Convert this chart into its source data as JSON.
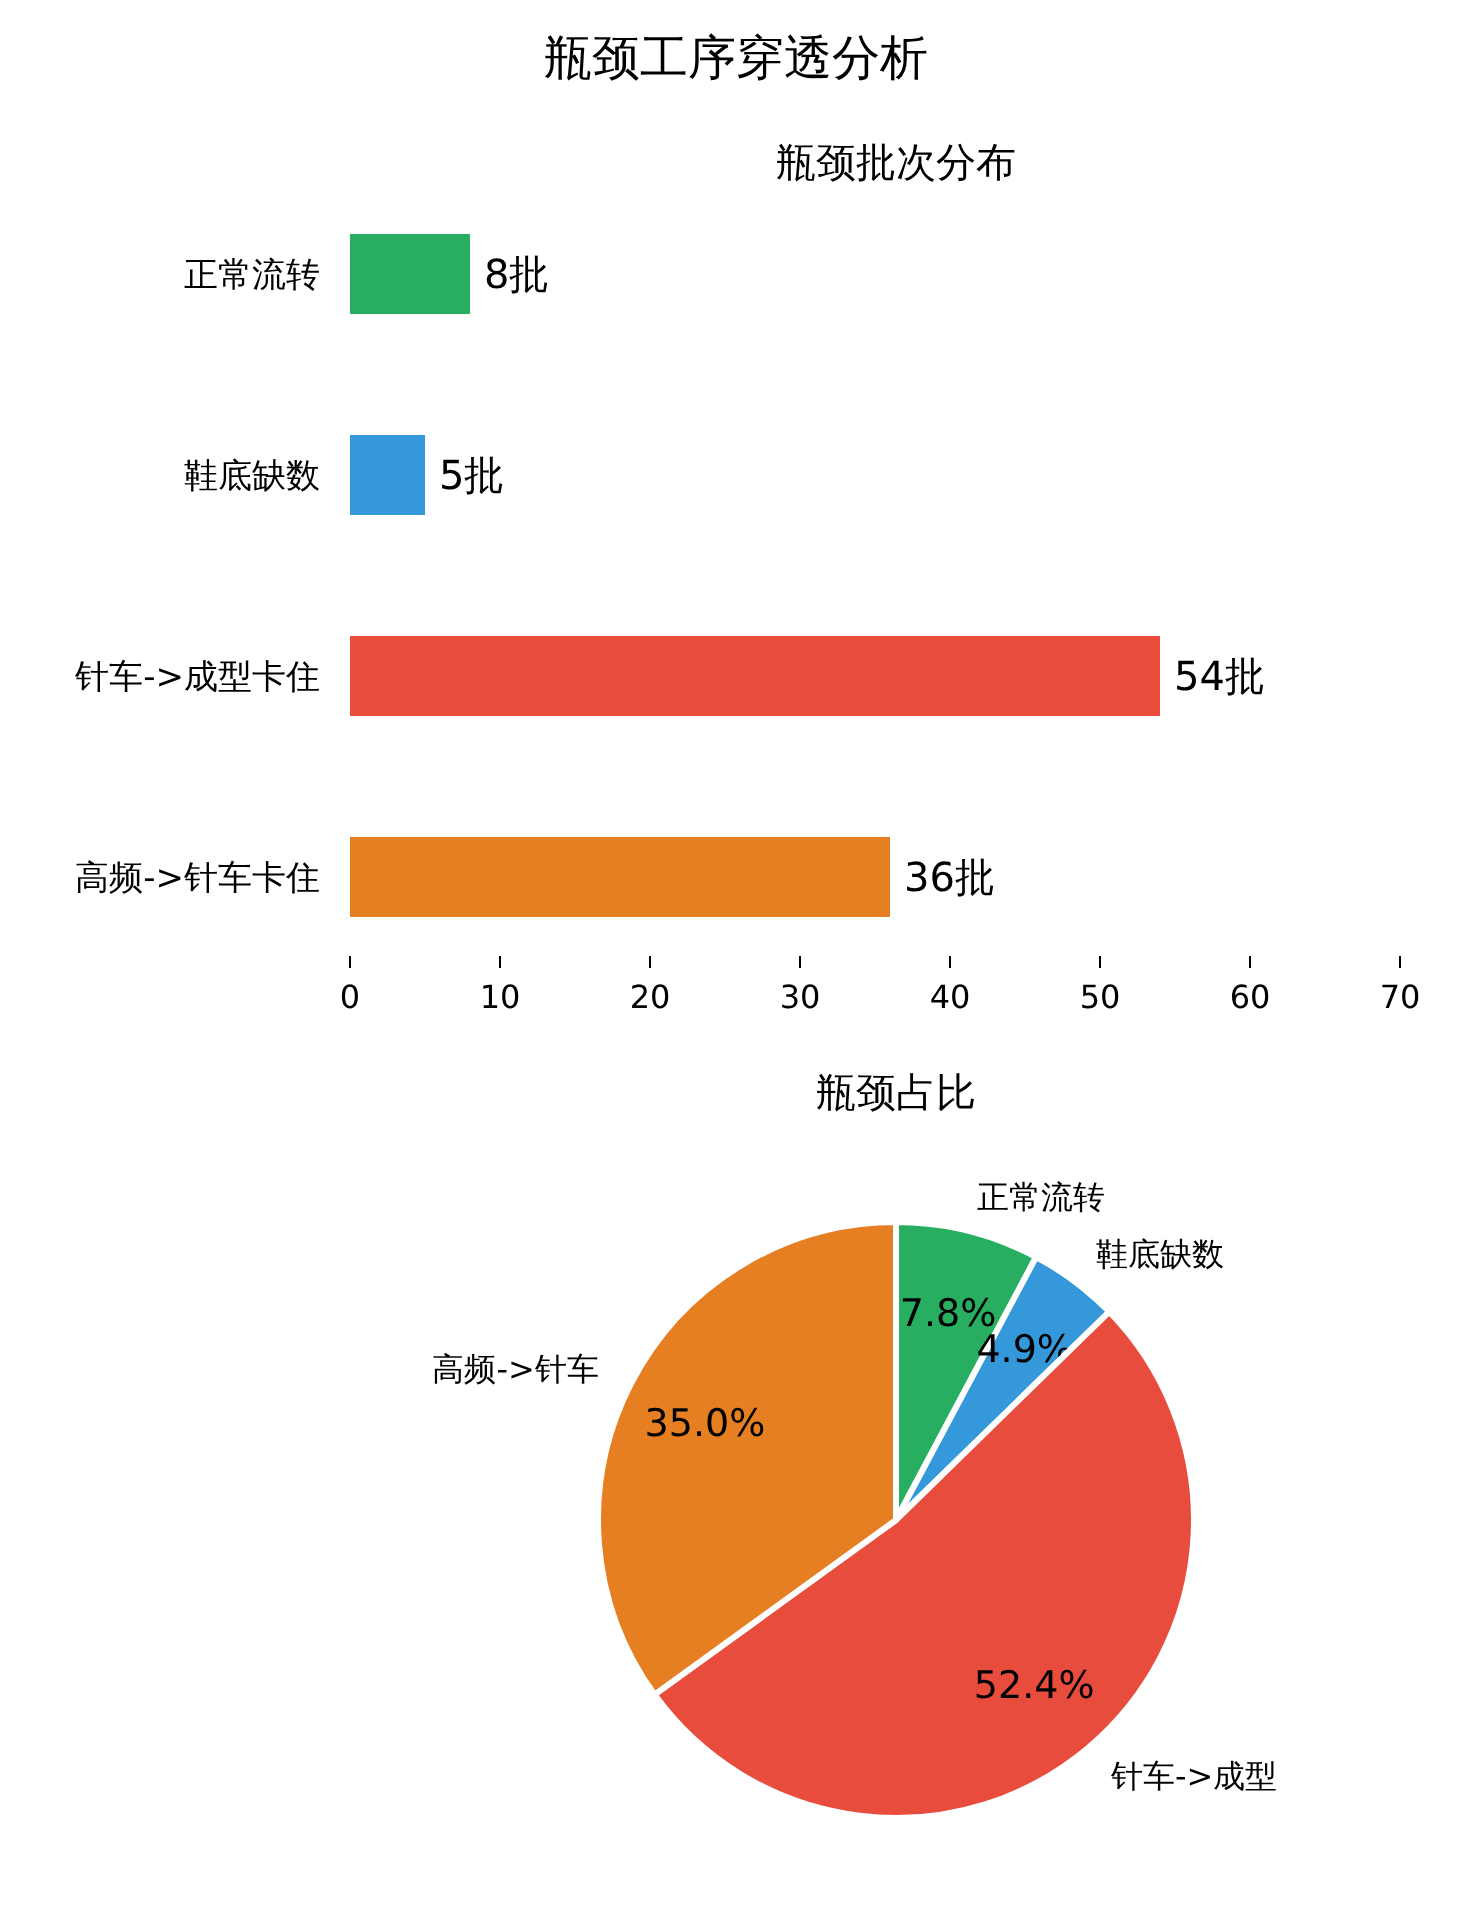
{
  "chart_data": [
    {
      "type": "bar",
      "title": "瓶颈工序穿透分析",
      "subtitle": "瓶颈批次分布",
      "orientation": "horizontal",
      "categories": [
        "正常流转",
        "鞋底缺数",
        "针车->成型卡住",
        "高频->针车卡住"
      ],
      "values": [
        8,
        5,
        54,
        36
      ],
      "colors": [
        "#27ae60",
        "#3498db",
        "#e74c3c",
        "#e67e22"
      ],
      "value_labels": [
        "8批",
        "5批",
        "54批",
        "36批"
      ],
      "xlim": [
        0,
        70
      ],
      "xticks": [
        0,
        10,
        20,
        30,
        40,
        50,
        60,
        70
      ]
    },
    {
      "type": "pie",
      "title": "瓶颈占比",
      "categories": [
        "正常流转",
        "鞋底缺数",
        "针车->成型",
        "高频->针车"
      ],
      "values": [
        7.8,
        4.9,
        52.4,
        35.0
      ],
      "colors": [
        "#27ae60",
        "#3498db",
        "#e74c3c",
        "#e67e22"
      ],
      "value_labels": [
        "7.8%",
        "4.9%",
        "52.4%",
        "35.0%"
      ]
    }
  ]
}
